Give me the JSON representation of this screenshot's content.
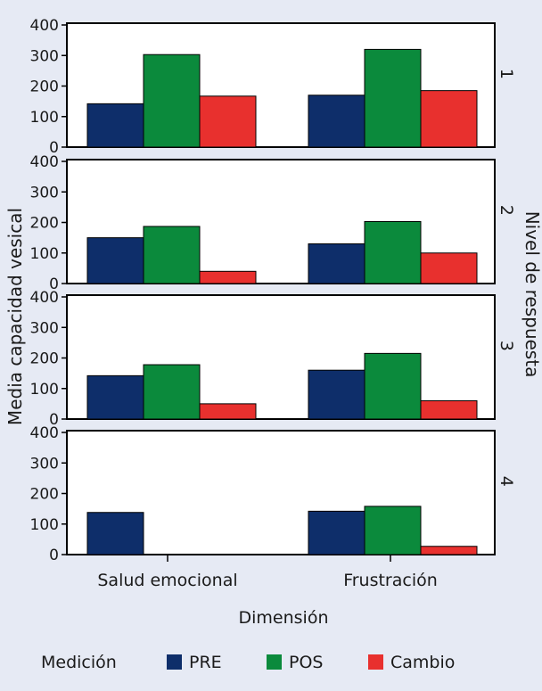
{
  "chart_data": {
    "type": "bar",
    "xlabel": "Dimensión",
    "ylabel": "Media capacidad vesical",
    "facet_label": "Nivel de respuesta",
    "ylim": [
      0,
      400
    ],
    "yticks": [
      "0",
      "100",
      "200",
      "300",
      "400"
    ],
    "categories": [
      "Salud emocional",
      "Frustración"
    ],
    "series_names": [
      "PRE",
      "POS",
      "Cambio"
    ],
    "colors": [
      "#0e2e6a",
      "#0b8a3c",
      "#e8302e"
    ],
    "legend_title": "Medición",
    "panels": [
      {
        "level": "1",
        "values": [
          [
            142,
            303,
            167
          ],
          [
            170,
            320,
            185
          ]
        ]
      },
      {
        "level": "2",
        "values": [
          [
            150,
            187,
            40
          ],
          [
            130,
            203,
            100
          ]
        ]
      },
      {
        "level": "3",
        "values": [
          [
            142,
            178,
            50
          ],
          [
            160,
            215,
            60
          ]
        ]
      },
      {
        "level": "4",
        "values": [
          [
            138,
            null,
            null
          ],
          [
            142,
            158,
            27
          ]
        ]
      }
    ]
  }
}
